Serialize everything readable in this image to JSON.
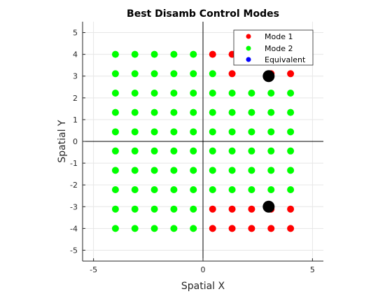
{
  "chart_data": {
    "type": "scatter",
    "title": "Best Disamb Control Modes",
    "xlabel": "Spatial X",
    "ylabel": "Spatial Y",
    "xlim": [
      -5.5,
      5.5
    ],
    "ylim": [
      -5.5,
      5.5
    ],
    "xticks": [
      -5,
      0,
      5
    ],
    "yticks": [
      -5,
      -4,
      -3,
      -2,
      -1,
      0,
      1,
      2,
      3,
      4,
      5
    ],
    "grid": true,
    "legend_position": "top-right",
    "colors": {
      "Mode 1": "#ff0000",
      "Mode 2": "#00ff00",
      "Equivalent": "#0000ff",
      "markers": "#000000"
    },
    "series": [
      {
        "name": "Mode 1",
        "points": [
          [
            0.44,
            4.0
          ],
          [
            1.33,
            4.0
          ],
          [
            1.33,
            3.11
          ],
          [
            3.11,
            3.11
          ],
          [
            4.0,
            3.11
          ],
          [
            0.44,
            -3.11
          ],
          [
            1.33,
            -3.11
          ],
          [
            2.22,
            -3.11
          ],
          [
            3.11,
            -3.11
          ],
          [
            4.0,
            -3.11
          ],
          [
            0.44,
            -4.0
          ],
          [
            1.33,
            -4.0
          ],
          [
            2.22,
            -4.0
          ],
          [
            3.11,
            -4.0
          ],
          [
            4.0,
            -4.0
          ]
        ]
      },
      {
        "name": "Mode 2",
        "points": [
          [
            -4.0,
            4.0
          ],
          [
            -3.11,
            4.0
          ],
          [
            -2.22,
            4.0
          ],
          [
            -1.33,
            4.0
          ],
          [
            -0.44,
            4.0
          ],
          [
            -4.0,
            3.11
          ],
          [
            -3.11,
            3.11
          ],
          [
            -2.22,
            3.11
          ],
          [
            -1.33,
            3.11
          ],
          [
            -0.44,
            3.11
          ],
          [
            0.44,
            3.11
          ],
          [
            -4.0,
            2.22
          ],
          [
            -3.11,
            2.22
          ],
          [
            -2.22,
            2.22
          ],
          [
            -1.33,
            2.22
          ],
          [
            -0.44,
            2.22
          ],
          [
            0.44,
            2.22
          ],
          [
            1.33,
            2.22
          ],
          [
            2.22,
            2.22
          ],
          [
            3.11,
            2.22
          ],
          [
            4.0,
            2.22
          ],
          [
            -4.0,
            1.33
          ],
          [
            -3.11,
            1.33
          ],
          [
            -2.22,
            1.33
          ],
          [
            -1.33,
            1.33
          ],
          [
            -0.44,
            1.33
          ],
          [
            0.44,
            1.33
          ],
          [
            1.33,
            1.33
          ],
          [
            2.22,
            1.33
          ],
          [
            3.11,
            1.33
          ],
          [
            4.0,
            1.33
          ],
          [
            -4.0,
            0.44
          ],
          [
            -3.11,
            0.44
          ],
          [
            -2.22,
            0.44
          ],
          [
            -1.33,
            0.44
          ],
          [
            -0.44,
            0.44
          ],
          [
            0.44,
            0.44
          ],
          [
            1.33,
            0.44
          ],
          [
            2.22,
            0.44
          ],
          [
            3.11,
            0.44
          ],
          [
            4.0,
            0.44
          ],
          [
            -4.0,
            -0.44
          ],
          [
            -3.11,
            -0.44
          ],
          [
            -2.22,
            -0.44
          ],
          [
            -1.33,
            -0.44
          ],
          [
            -0.44,
            -0.44
          ],
          [
            0.44,
            -0.44
          ],
          [
            1.33,
            -0.44
          ],
          [
            2.22,
            -0.44
          ],
          [
            3.11,
            -0.44
          ],
          [
            4.0,
            -0.44
          ],
          [
            -4.0,
            -1.33
          ],
          [
            -3.11,
            -1.33
          ],
          [
            -2.22,
            -1.33
          ],
          [
            -1.33,
            -1.33
          ],
          [
            -0.44,
            -1.33
          ],
          [
            0.44,
            -1.33
          ],
          [
            1.33,
            -1.33
          ],
          [
            2.22,
            -1.33
          ],
          [
            3.11,
            -1.33
          ],
          [
            4.0,
            -1.33
          ],
          [
            -4.0,
            -2.22
          ],
          [
            -3.11,
            -2.22
          ],
          [
            -2.22,
            -2.22
          ],
          [
            -1.33,
            -2.22
          ],
          [
            -0.44,
            -2.22
          ],
          [
            0.44,
            -2.22
          ],
          [
            1.33,
            -2.22
          ],
          [
            2.22,
            -2.22
          ],
          [
            3.11,
            -2.22
          ],
          [
            4.0,
            -2.22
          ],
          [
            -4.0,
            -3.11
          ],
          [
            -3.11,
            -3.11
          ],
          [
            -2.22,
            -3.11
          ],
          [
            -1.33,
            -3.11
          ],
          [
            -0.44,
            -3.11
          ],
          [
            -4.0,
            -4.0
          ],
          [
            -3.11,
            -4.0
          ],
          [
            -2.22,
            -4.0
          ],
          [
            -1.33,
            -4.0
          ],
          [
            -0.44,
            -4.0
          ]
        ]
      },
      {
        "name": "Equivalent",
        "points": []
      }
    ],
    "markers": [
      [
        3.0,
        3.0
      ],
      [
        3.0,
        -3.0
      ]
    ],
    "legend": [
      "Mode 1",
      "Mode 2",
      "Equivalent"
    ]
  }
}
